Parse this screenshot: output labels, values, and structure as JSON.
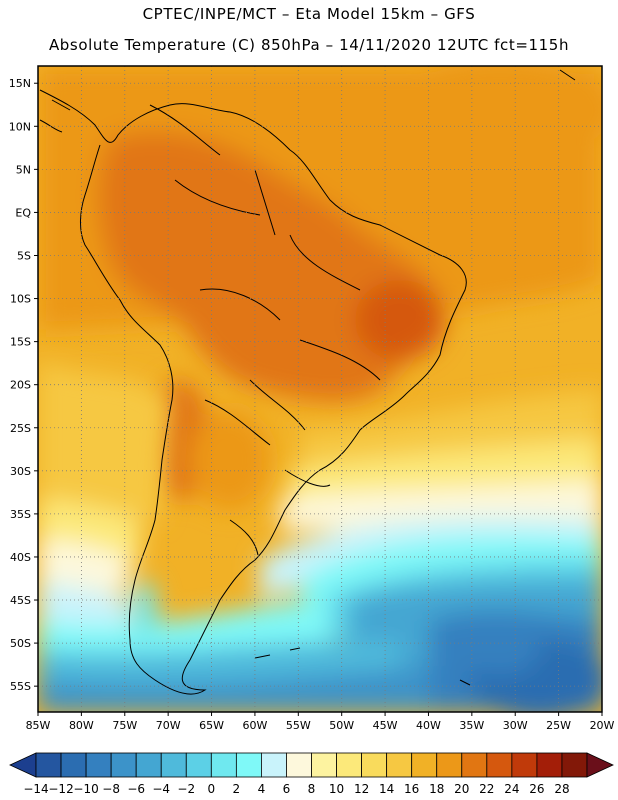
{
  "header": {
    "line1": "CPTEC/INPE/MCT –  Eta Model 15km – GFS",
    "line2": "Absolute Temperature (C) 850hPa – 14/11/2020 12UTC fct=115h"
  },
  "map": {
    "region": "South America",
    "lon_range": [
      -85,
      -20
    ],
    "lat_range": [
      -58,
      17
    ],
    "lat_ticks": [
      "15N",
      "10N",
      "5N",
      "EQ",
      "5S",
      "10S",
      "15S",
      "20S",
      "25S",
      "30S",
      "35S",
      "40S",
      "45S",
      "50S",
      "55S"
    ],
    "lon_ticks": [
      "85W",
      "80W",
      "75W",
      "70W",
      "65W",
      "60W",
      "55W",
      "50W",
      "45W",
      "40W",
      "35W",
      "30W",
      "25W",
      "20W"
    ],
    "grid": "dotted"
  },
  "colorbar": {
    "labels": [
      "-14",
      "-12",
      "-10",
      "-8",
      "-6",
      "-4",
      "-2",
      "0",
      "2",
      "4",
      "6",
      "8",
      "10",
      "12",
      "14",
      "16",
      "18",
      "20",
      "22",
      "24",
      "26",
      "28"
    ],
    "colors": [
      "#1c3f8f",
      "#2456a0",
      "#2b6db1",
      "#3480bf",
      "#3c93c9",
      "#44a6d2",
      "#4fbadb",
      "#5cd0e6",
      "#6fe8ef",
      "#7ff9f8",
      "#c9f3fb",
      "#fdf8dc",
      "#fdf3a0",
      "#fce97a",
      "#f9db5c",
      "#f6c842",
      "#f1b126",
      "#ec9818",
      "#e17612",
      "#d5580e",
      "#c03a0a",
      "#a31e08",
      "#821808",
      "#6a0f1a"
    ]
  }
}
